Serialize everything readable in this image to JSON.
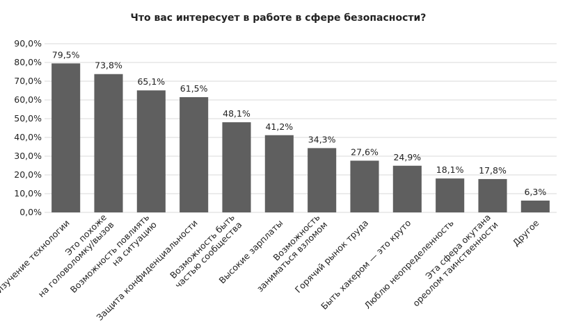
{
  "chart_data": {
    "type": "bar",
    "title": "Что вас интересует в работе в сфере безопасности?",
    "categories": [
      [
        "Изучение технологии"
      ],
      [
        "Это похоже",
        "на головоломку/вызов"
      ],
      [
        "Возможность повлиять",
        "на ситуацию"
      ],
      [
        "Защита конфиденциальности"
      ],
      [
        "Возможность быть",
        "частью сообщества"
      ],
      [
        "Высокие зарплаты"
      ],
      [
        "Возможность",
        "заниматься взломом"
      ],
      [
        "Горячий рынок труда"
      ],
      [
        "Быть хакером — это круто"
      ],
      [
        "Люблю неопределенность"
      ],
      [
        "Эта сфера окутана",
        "ореолом таинственности"
      ],
      [
        "Другое"
      ]
    ],
    "values": [
      79.5,
      73.8,
      65.1,
      61.5,
      48.1,
      41.2,
      34.3,
      27.6,
      24.9,
      18.1,
      17.8,
      6.3
    ],
    "value_labels": [
      "79,5%",
      "73,8%",
      "65,1%",
      "61,5%",
      "48,1%",
      "41,2%",
      "34,3%",
      "27,6%",
      "24,9%",
      "18,1%",
      "17,8%",
      "6,3%"
    ],
    "color": "#5f5f5f",
    "ylim": [
      0,
      90
    ],
    "yticks": [
      {
        "value": 0,
        "label": "0,0%"
      },
      {
        "value": 10,
        "label": "10,0%"
      },
      {
        "value": 20,
        "label": "20,0%"
      },
      {
        "value": 30,
        "label": "30,0%"
      },
      {
        "value": 40,
        "label": "40,0%"
      },
      {
        "value": 50,
        "label": "50,0%"
      },
      {
        "value": 60,
        "label": "60,0%"
      },
      {
        "value": 70,
        "label": "70,0%"
      },
      {
        "value": 80,
        "label": "80,0%"
      },
      {
        "value": 90,
        "label": "90,0%"
      }
    ],
    "grid": true
  }
}
